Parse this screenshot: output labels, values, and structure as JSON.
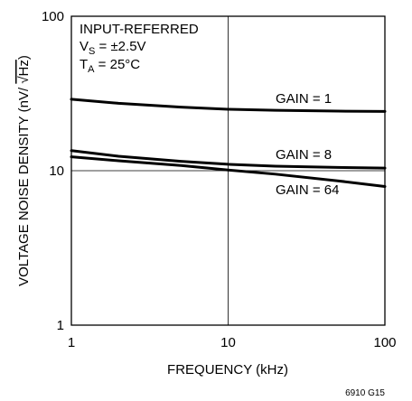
{
  "chart_data": {
    "type": "line",
    "title": "",
    "xlabel": "FREQUENCY (kHz)",
    "ylabel": "VOLTAGE NOISE DENSITY (nV/√Hz)",
    "x_scale": "log",
    "y_scale": "log",
    "xlim": [
      1,
      100
    ],
    "ylim": [
      1,
      100
    ],
    "x_ticks": [
      "1",
      "10",
      "100"
    ],
    "y_ticks": [
      "1",
      "10",
      "100"
    ],
    "grid": true,
    "legend": "none (inline series labels)",
    "annotations": [
      "INPUT-REFERRED",
      "V_S = ±2.5V",
      "T_A = 25°C"
    ],
    "figure_id": "6910 G15",
    "line_color": "#000000",
    "series": [
      {
        "name": "GAIN = 1",
        "x": [
          1,
          2,
          5,
          10,
          20,
          50,
          100
        ],
        "y": [
          29,
          27.3,
          25.8,
          25,
          24.6,
          24.3,
          24.2
        ]
      },
      {
        "name": "GAIN = 8",
        "x": [
          1,
          2,
          5,
          10,
          20,
          50,
          100
        ],
        "y": [
          13.5,
          12.4,
          11.5,
          11,
          10.7,
          10.5,
          10.4
        ]
      },
      {
        "name": "GAIN = 64",
        "x": [
          1,
          2,
          5,
          10,
          20,
          50,
          100
        ],
        "y": [
          12.3,
          11.6,
          10.8,
          10.1,
          9.5,
          8.6,
          7.9
        ]
      }
    ]
  }
}
